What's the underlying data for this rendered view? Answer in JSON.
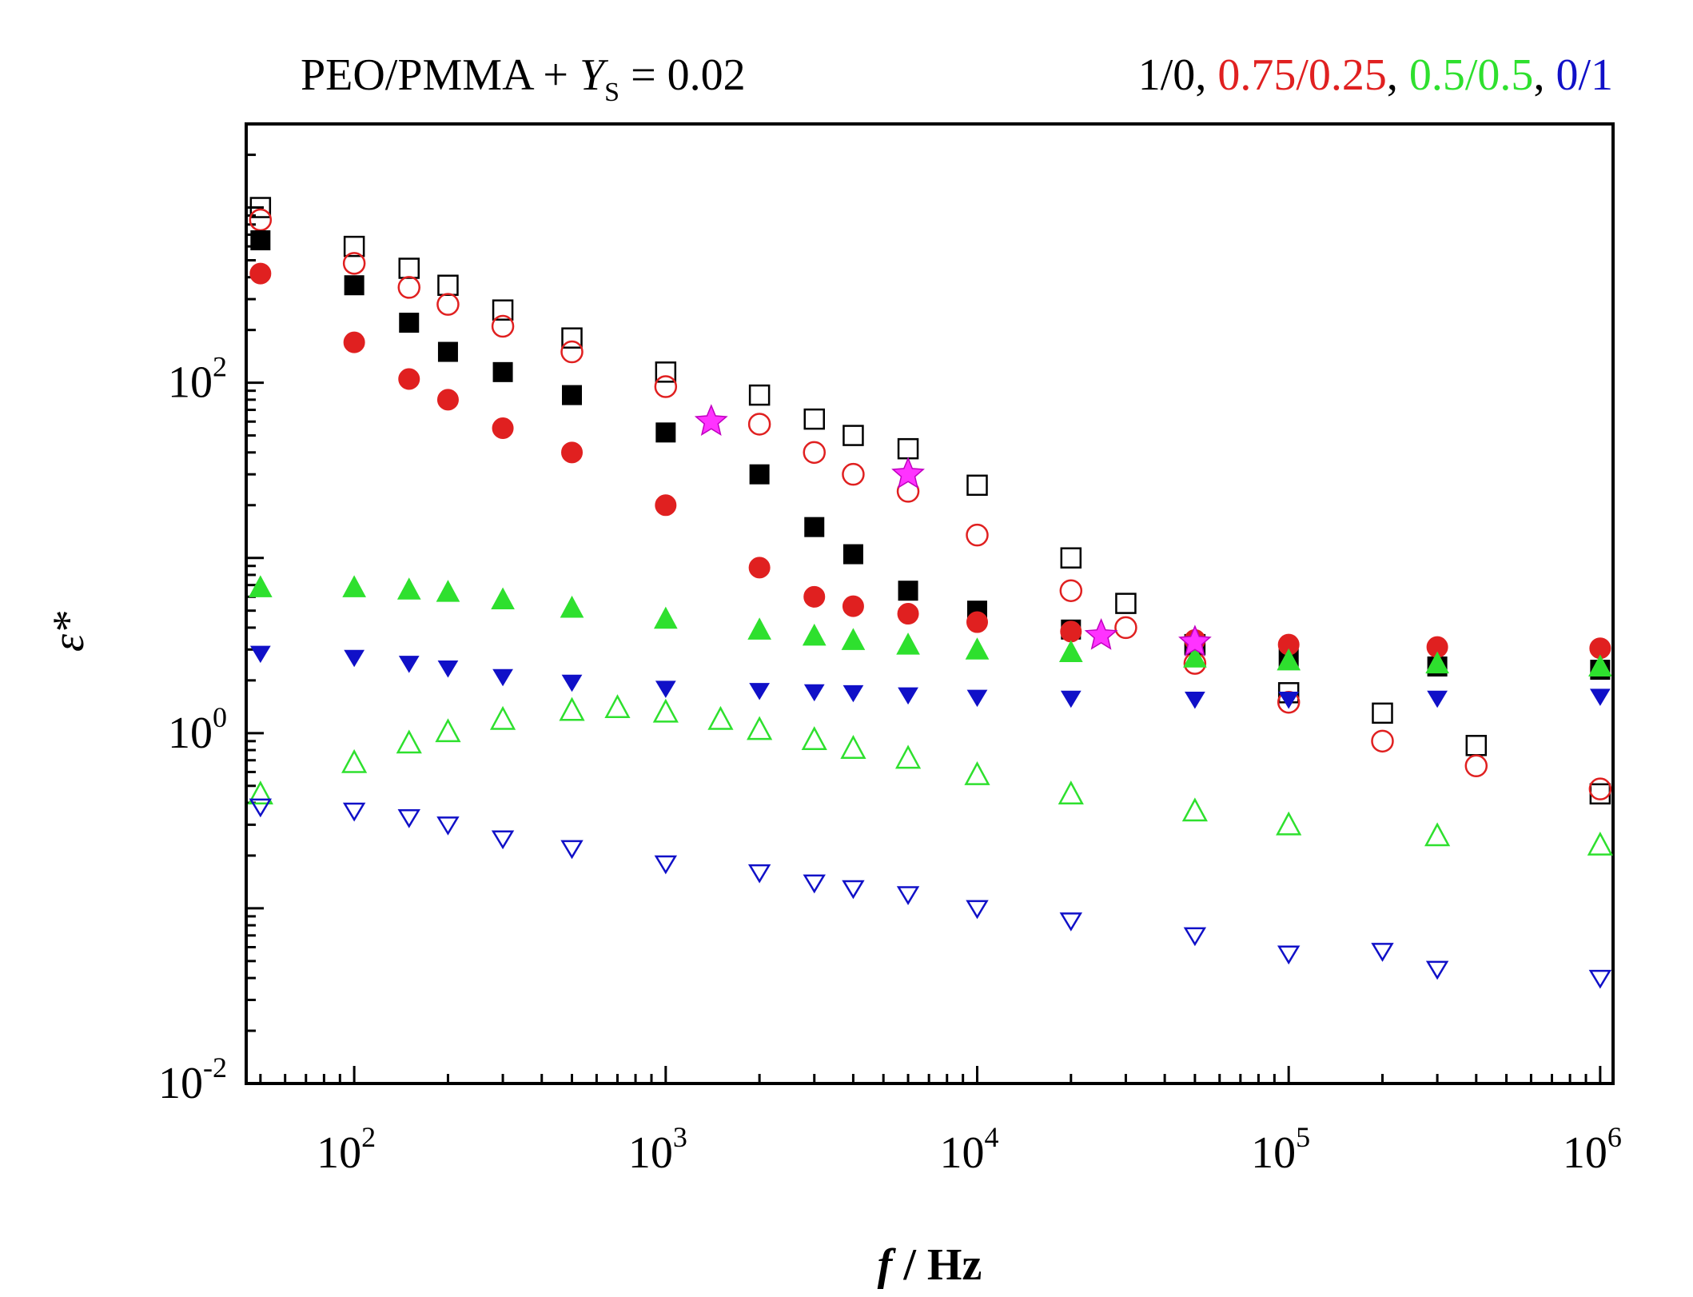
{
  "chart_data": {
    "type": "scatter",
    "title": {
      "prefix": "PEO/PMMA + ",
      "var": "Y",
      "sub": "S",
      "suffix": " = 0.02"
    },
    "legend_text": [
      {
        "text": "1/0",
        "color": "#000000"
      },
      {
        "text": ", ",
        "color": "#000000"
      },
      {
        "text": "0.75/0.25",
        "color": "#e02020"
      },
      {
        "text": ", ",
        "color": "#000000"
      },
      {
        "text": "0.5/0.5",
        "color": "#2ee02e"
      },
      {
        "text": ", ",
        "color": "#000000"
      },
      {
        "text": "0/1",
        "color": "#1010c8"
      }
    ],
    "legend_placement": "top-right",
    "xlabel": {
      "var": "f",
      "unit": " / Hz"
    },
    "ylabel": "ε*",
    "x_scale": "log",
    "y_scale": "log",
    "xlim": [
      45,
      1100000
    ],
    "ylim": [
      0.01,
      3000
    ],
    "x_ticks": [
      {
        "base": "10",
        "exp": "2",
        "value": 100
      },
      {
        "base": "10",
        "exp": "3",
        "value": 1000
      },
      {
        "base": "10",
        "exp": "4",
        "value": 10000
      },
      {
        "base": "10",
        "exp": "5",
        "value": 100000
      },
      {
        "base": "10",
        "exp": "6",
        "value": 1000000
      }
    ],
    "y_ticks": [
      {
        "base": "10",
        "exp": "-2",
        "value": 0.01
      },
      {
        "base": "10",
        "exp": "0",
        "value": 1
      },
      {
        "base": "10",
        "exp": "2",
        "value": 100
      }
    ],
    "grid": false,
    "colors": {
      "black": "#000000",
      "red": "#e02020",
      "green": "#2ee02e",
      "blue": "#1010c8",
      "magenta": "#ff33ff"
    },
    "series": [
      {
        "color": "#000000",
        "marker": "square",
        "filled": false,
        "points": [
          [
            50,
            1000
          ],
          [
            100,
            600
          ],
          [
            150,
            450
          ],
          [
            200,
            360
          ],
          [
            300,
            260
          ],
          [
            500,
            180
          ],
          [
            1000,
            115
          ],
          [
            2000,
            85
          ],
          [
            3000,
            62
          ],
          [
            4000,
            50
          ],
          [
            6000,
            42
          ],
          [
            10000,
            26
          ],
          [
            20000,
            10
          ],
          [
            30000,
            5.5
          ],
          [
            50000,
            3.2
          ],
          [
            100000,
            1.7
          ],
          [
            200000,
            1.3
          ],
          [
            400000,
            0.85
          ],
          [
            1000000,
            0.45
          ]
        ]
      },
      {
        "color": "#e02020",
        "marker": "circle",
        "filled": false,
        "points": [
          [
            50,
            850
          ],
          [
            100,
            480
          ],
          [
            150,
            350
          ],
          [
            200,
            280
          ],
          [
            300,
            210
          ],
          [
            500,
            150
          ],
          [
            1000,
            95
          ],
          [
            2000,
            58
          ],
          [
            3000,
            40
          ],
          [
            4000,
            30
          ],
          [
            6000,
            24
          ],
          [
            10000,
            13.5
          ],
          [
            20000,
            6.5
          ],
          [
            30000,
            4
          ],
          [
            50000,
            2.5
          ],
          [
            100000,
            1.5
          ],
          [
            200000,
            0.9
          ],
          [
            400000,
            0.65
          ],
          [
            1000000,
            0.48
          ]
        ]
      },
      {
        "color": "#000000",
        "marker": "square",
        "filled": true,
        "points": [
          [
            50,
            650
          ],
          [
            100,
            360
          ],
          [
            150,
            220
          ],
          [
            200,
            150
          ],
          [
            300,
            115
          ],
          [
            500,
            85
          ],
          [
            1000,
            52
          ],
          [
            2000,
            30
          ],
          [
            3000,
            15
          ],
          [
            4000,
            10.5
          ],
          [
            6000,
            6.5
          ],
          [
            10000,
            5
          ],
          [
            20000,
            3.9
          ],
          [
            50000,
            3.2
          ],
          [
            100000,
            2.7
          ],
          [
            300000,
            2.4
          ],
          [
            1000000,
            2.3
          ]
        ]
      },
      {
        "color": "#e02020",
        "marker": "circle",
        "filled": true,
        "points": [
          [
            50,
            420
          ],
          [
            100,
            170
          ],
          [
            150,
            105
          ],
          [
            200,
            80
          ],
          [
            300,
            55
          ],
          [
            500,
            40
          ],
          [
            1000,
            20
          ],
          [
            2000,
            8.8
          ],
          [
            3000,
            6
          ],
          [
            4000,
            5.3
          ],
          [
            6000,
            4.8
          ],
          [
            10000,
            4.3
          ],
          [
            20000,
            3.8
          ],
          [
            50000,
            3.4
          ],
          [
            100000,
            3.2
          ],
          [
            300000,
            3.1
          ],
          [
            1000000,
            3.05
          ]
        ]
      },
      {
        "color": "#2ee02e",
        "marker": "triangle-up",
        "filled": true,
        "points": [
          [
            50,
            6.8
          ],
          [
            100,
            6.8
          ],
          [
            150,
            6.6
          ],
          [
            200,
            6.4
          ],
          [
            300,
            5.8
          ],
          [
            500,
            5.2
          ],
          [
            1000,
            4.5
          ],
          [
            2000,
            3.9
          ],
          [
            3000,
            3.6
          ],
          [
            4000,
            3.4
          ],
          [
            6000,
            3.2
          ],
          [
            10000,
            3.0
          ],
          [
            20000,
            2.9
          ],
          [
            50000,
            2.7
          ],
          [
            100000,
            2.6
          ],
          [
            300000,
            2.5
          ],
          [
            1000000,
            2.4
          ]
        ]
      },
      {
        "color": "#1010c8",
        "marker": "triangle-down",
        "filled": true,
        "points": [
          [
            50,
            2.85
          ],
          [
            100,
            2.7
          ],
          [
            150,
            2.5
          ],
          [
            200,
            2.35
          ],
          [
            300,
            2.1
          ],
          [
            500,
            1.95
          ],
          [
            1000,
            1.8
          ],
          [
            2000,
            1.75
          ],
          [
            3000,
            1.72
          ],
          [
            4000,
            1.7
          ],
          [
            6000,
            1.65
          ],
          [
            10000,
            1.6
          ],
          [
            20000,
            1.58
          ],
          [
            50000,
            1.56
          ],
          [
            100000,
            1.56
          ],
          [
            300000,
            1.58
          ],
          [
            1000000,
            1.62
          ]
        ]
      },
      {
        "color": "#2ee02e",
        "marker": "triangle-up",
        "filled": false,
        "points": [
          [
            50,
            0.45
          ],
          [
            100,
            0.68
          ],
          [
            150,
            0.88
          ],
          [
            200,
            1.02
          ],
          [
            300,
            1.2
          ],
          [
            500,
            1.35
          ],
          [
            700,
            1.4
          ],
          [
            1000,
            1.32
          ],
          [
            1500,
            1.2
          ],
          [
            2000,
            1.05
          ],
          [
            3000,
            0.92
          ],
          [
            4000,
            0.82
          ],
          [
            6000,
            0.72
          ],
          [
            10000,
            0.58
          ],
          [
            20000,
            0.45
          ],
          [
            50000,
            0.36
          ],
          [
            100000,
            0.3
          ],
          [
            300000,
            0.26
          ],
          [
            1000000,
            0.23
          ]
        ]
      },
      {
        "color": "#1010c8",
        "marker": "triangle-down",
        "filled": false,
        "points": [
          [
            50,
            0.38
          ],
          [
            100,
            0.36
          ],
          [
            150,
            0.33
          ],
          [
            200,
            0.3
          ],
          [
            300,
            0.25
          ],
          [
            500,
            0.22
          ],
          [
            1000,
            0.18
          ],
          [
            2000,
            0.16
          ],
          [
            3000,
            0.14
          ],
          [
            4000,
            0.13
          ],
          [
            6000,
            0.12
          ],
          [
            10000,
            0.1
          ],
          [
            20000,
            0.085
          ],
          [
            50000,
            0.07
          ],
          [
            100000,
            0.055
          ],
          [
            200000,
            0.057
          ],
          [
            300000,
            0.045
          ],
          [
            1000000,
            0.04
          ]
        ]
      },
      {
        "color": "#ff33ff",
        "marker": "star",
        "filled": true,
        "points": [
          [
            1400,
            60
          ],
          [
            6000,
            30
          ],
          [
            25000,
            3.6
          ],
          [
            50000,
            3.3
          ]
        ]
      }
    ]
  }
}
